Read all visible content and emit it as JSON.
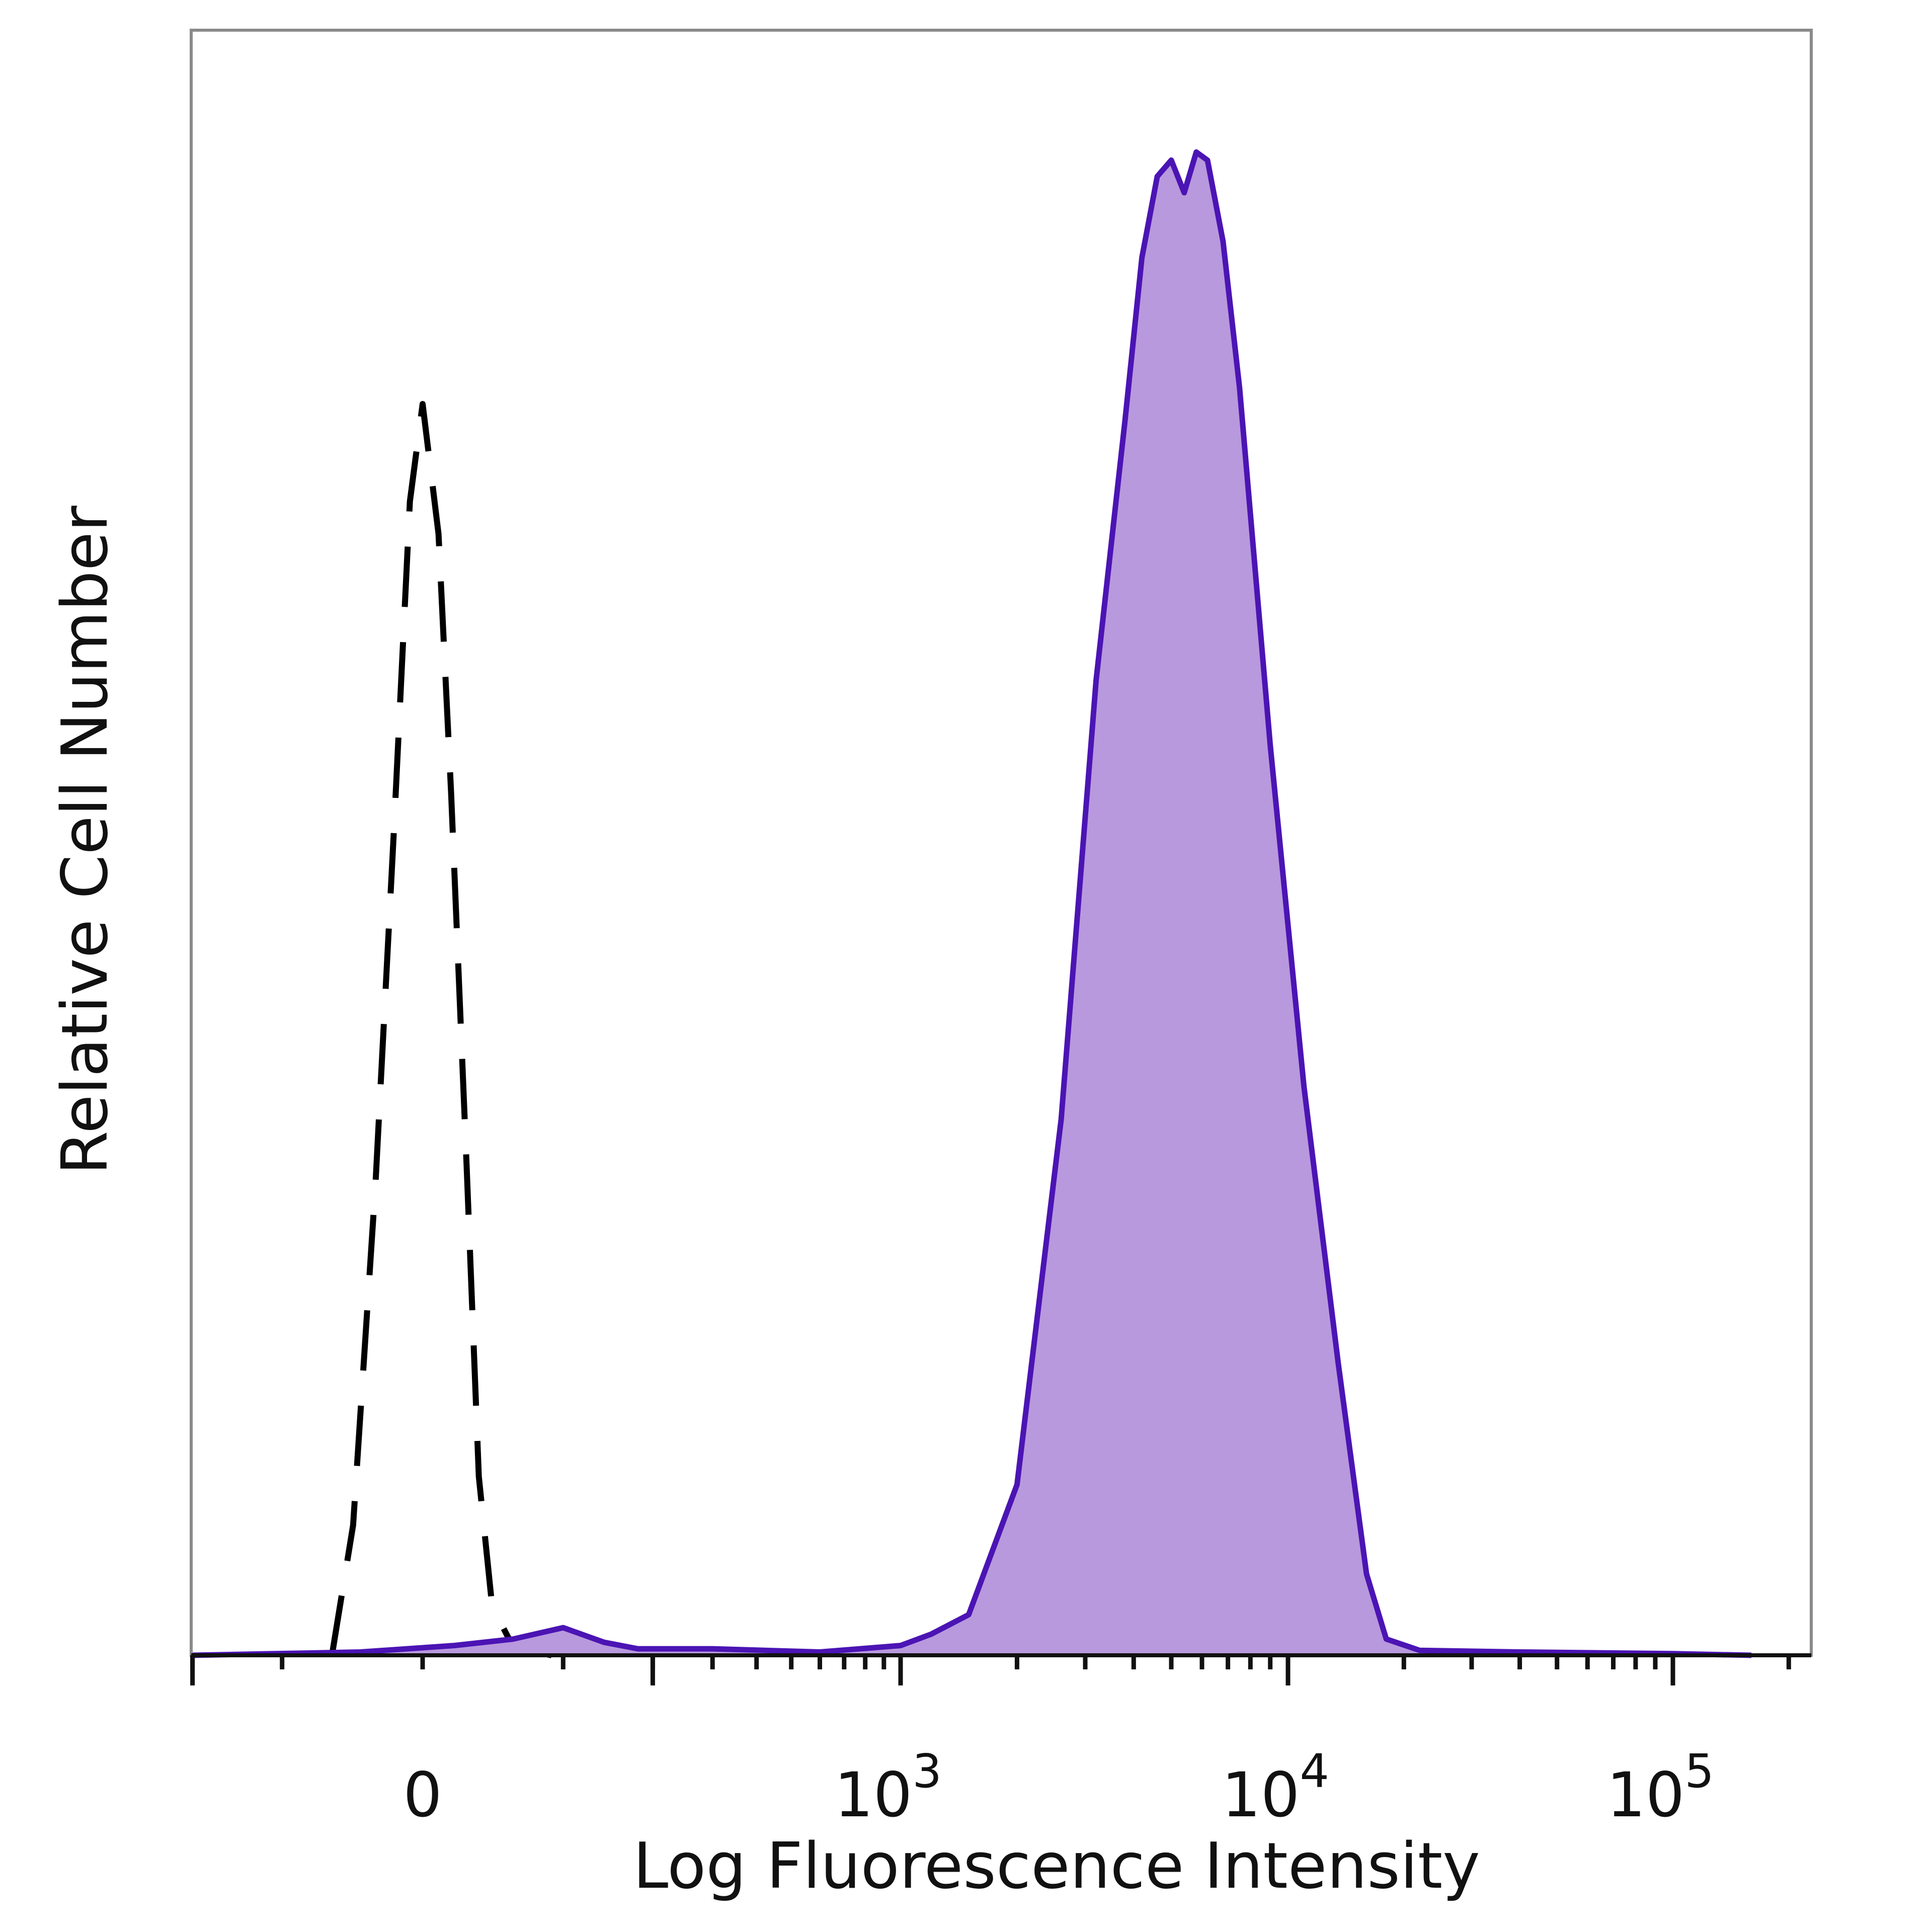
{
  "chart_data": {
    "type": "area",
    "title": "",
    "xlabel": "Log Fluorescence Intensity",
    "ylabel": "Relative Cell Number",
    "x_scale": "biexponential",
    "x_ticks": [
      {
        "value": 0,
        "label": "0"
      },
      {
        "value": 1000,
        "label": "10",
        "exp": "3"
      },
      {
        "value": 10000,
        "label": "10",
        "exp": "4"
      },
      {
        "value": 100000,
        "label": "10",
        "exp": "5"
      }
    ],
    "ylim": [
      0,
      100
    ],
    "grid": false,
    "legend": "none",
    "series": [
      {
        "style": "dashed",
        "color": "#000000",
        "points": [
          [
            -60,
            0
          ],
          [
            -45,
            8
          ],
          [
            -30,
            29
          ],
          [
            -18,
            51
          ],
          [
            -8,
            71
          ],
          [
            0,
            77
          ],
          [
            10,
            69
          ],
          [
            18,
            53
          ],
          [
            28,
            30
          ],
          [
            36,
            11
          ],
          [
            45,
            3
          ],
          [
            60,
            0.5
          ],
          [
            90,
            0
          ]
        ]
      },
      {
        "style": "filled",
        "color": "#4b14b4",
        "fill": "#b899dd",
        "points": [
          [
            -200,
            0
          ],
          [
            -40,
            0.2
          ],
          [
            20,
            0.6
          ],
          [
            60,
            1.0
          ],
          [
            100,
            1.7
          ],
          [
            140,
            0.8
          ],
          [
            180,
            0.4
          ],
          [
            300,
            0.4
          ],
          [
            600,
            0.2
          ],
          [
            1000,
            0.6
          ],
          [
            1200,
            1.3
          ],
          [
            1500,
            2.5
          ],
          [
            2000,
            10.5
          ],
          [
            2600,
            33
          ],
          [
            3200,
            60
          ],
          [
            3800,
            76
          ],
          [
            4200,
            86
          ],
          [
            4600,
            91
          ],
          [
            5000,
            92
          ],
          [
            5400,
            90
          ],
          [
            5800,
            92.5
          ],
          [
            6200,
            92
          ],
          [
            6800,
            87
          ],
          [
            7500,
            78
          ],
          [
            9000,
            56
          ],
          [
            11000,
            35
          ],
          [
            13500,
            18
          ],
          [
            16000,
            5
          ],
          [
            18000,
            1.0
          ],
          [
            22000,
            0.3
          ],
          [
            40000,
            0.2
          ],
          [
            100000,
            0.1
          ],
          [
            160000,
            0
          ]
        ]
      }
    ]
  }
}
